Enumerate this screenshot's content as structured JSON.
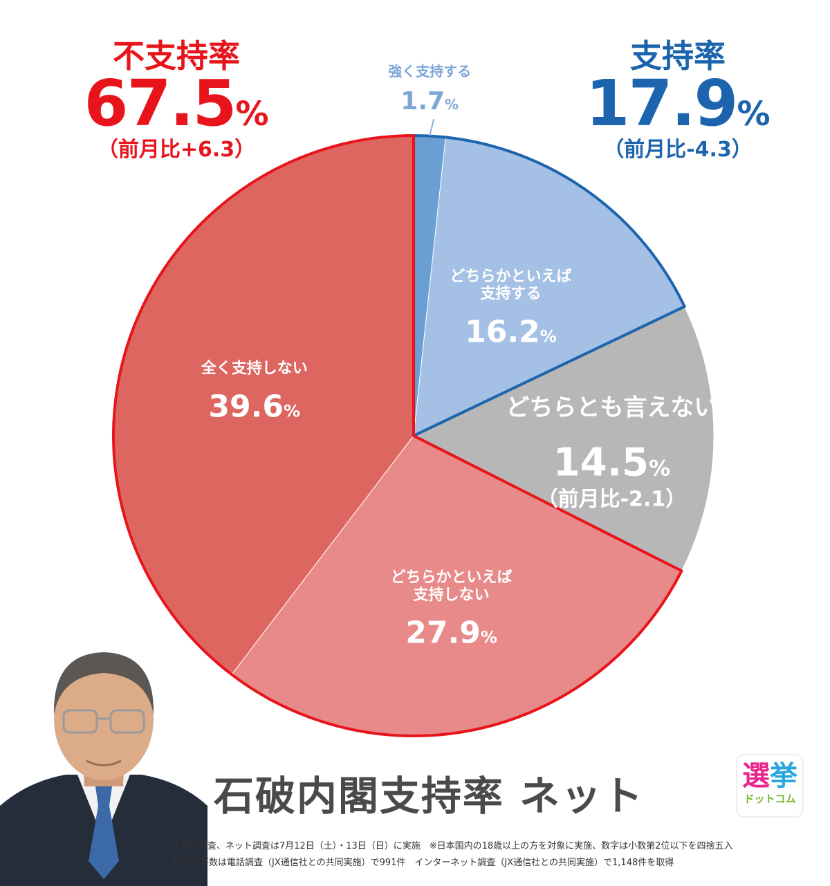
{
  "chart_data": {
    "type": "pie",
    "title": "石破内閣支持率 ネット",
    "slices": [
      {
        "name_lines": [
          "強く支持する"
        ],
        "value": 1.7,
        "value_text": "1.7",
        "color": "#6a9fd4",
        "group": "approval"
      },
      {
        "name_lines": [
          "どちらかといえば",
          "支持する"
        ],
        "value": 16.2,
        "value_text": "16.2",
        "color": "#a5c0e5",
        "group": "approval"
      },
      {
        "name_lines": [
          "どちらとも言えない"
        ],
        "value": 14.5,
        "value_text": "14.5",
        "color": "#b7b7b7",
        "group": "neutral",
        "diff": "（前月比-2.1）"
      },
      {
        "name_lines": [
          "どちらかといえば",
          "支持しない"
        ],
        "value": 27.9,
        "value_text": "27.9",
        "color": "#e8898a",
        "group": "disapproval"
      },
      {
        "name_lines": [
          "全く支持しない"
        ],
        "value": 39.6,
        "value_text": "39.6",
        "color": "#de6661",
        "group": "disapproval"
      }
    ],
    "unit": "%",
    "groups": {
      "approval": {
        "label": "支持率",
        "value": "17.9",
        "diff": "（前月比-4.3）",
        "color": "#1c64ad"
      },
      "disapproval": {
        "label": "不支持率",
        "value": "67.5",
        "diff": "（前月比+6.3）",
        "color": "#e8141b"
      }
    }
  },
  "notes": [
    "※電話調査、ネット調査は7月12日（土）・13日（日）に実施　※日本国内の18歳以上の方を対象に実施、数字は小数第2位以下を四捨五入",
    "有効回答数は電話調査（JX通信社との共同実施）で991件　インターネット調査（JX通信社との共同実施）で1,148件を取得"
  ],
  "logo": {
    "line1_a": "選",
    "line1_b": "挙",
    "line2": "ドットコム"
  },
  "photo": {
    "icon": "person-photo"
  }
}
